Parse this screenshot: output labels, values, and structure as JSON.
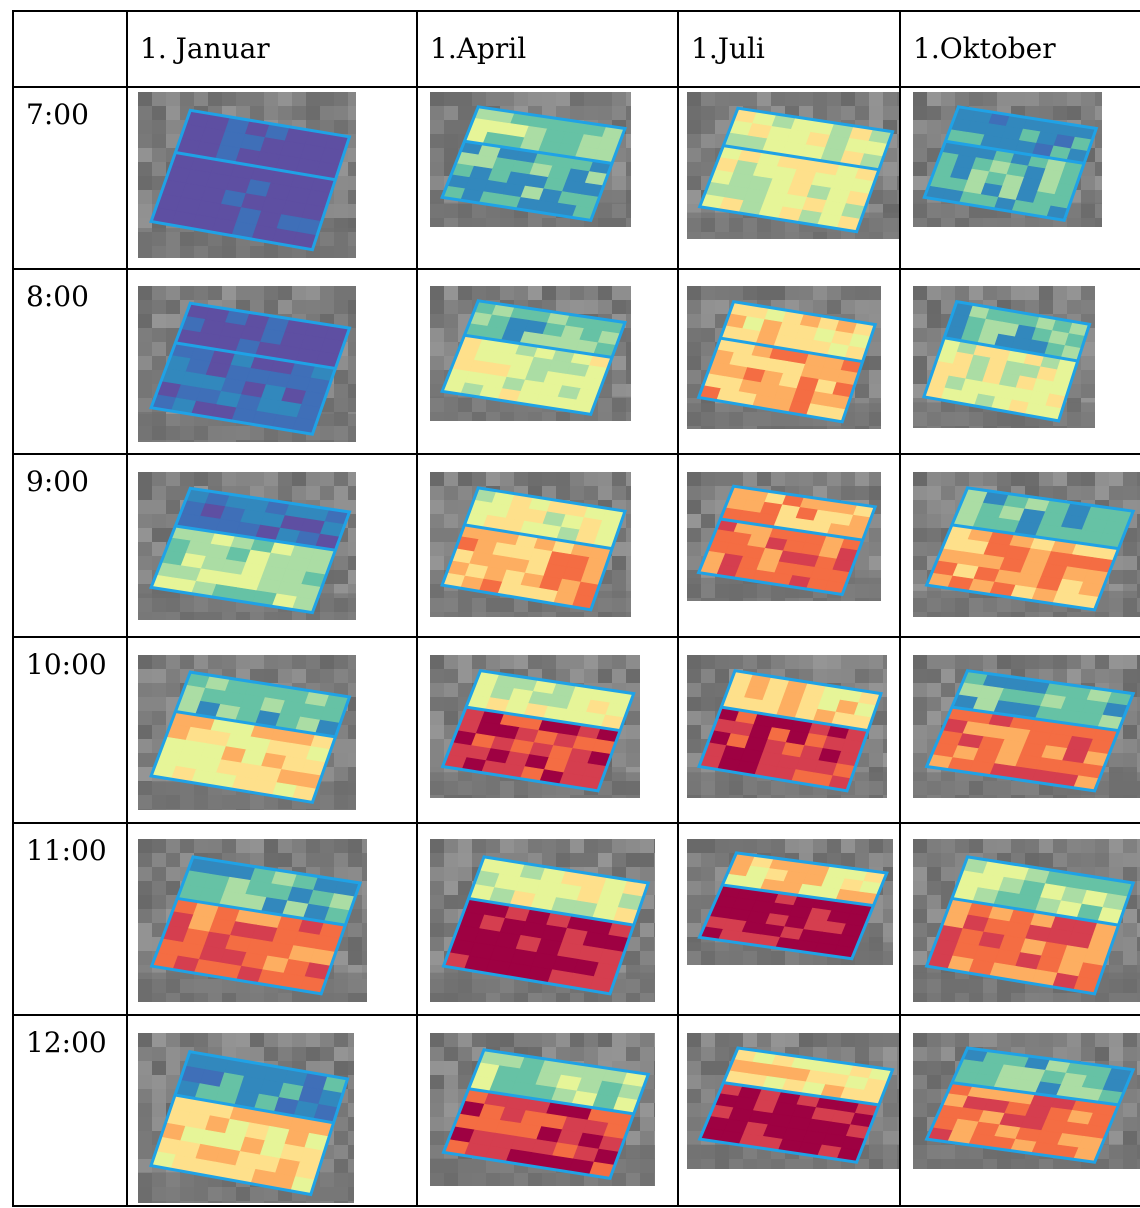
{
  "table": {
    "headers": [
      "",
      "1. Januar",
      "1.April",
      "1.Juli",
      "1.Oktober"
    ],
    "rows": [
      "7:00",
      "8:00",
      "9:00",
      "10:00",
      "11:00",
      "12:00"
    ]
  },
  "palette": {
    "shadow_gray": "#6f6f6f",
    "panel_outline": "#1fa2e6",
    "level_colors": [
      "#5e4fa2",
      "#3f6fb8",
      "#3288bd",
      "#66c2a5",
      "#abdda4",
      "#e6f598",
      "#fee08b",
      "#fdae61",
      "#f46d43",
      "#d53e4f",
      "#9e0142"
    ]
  },
  "thumbnails": [
    [
      {
        "top": 0,
        "bottom": 0
      },
      {
        "top": 4,
        "bottom": 3
      },
      {
        "top": 5,
        "bottom": 5
      },
      {
        "top": 2,
        "bottom": 3
      }
    ],
    [
      {
        "top": 0,
        "bottom": 1
      },
      {
        "top": 3,
        "bottom": 5
      },
      {
        "top": 6,
        "bottom": 7
      },
      {
        "top": 3,
        "bottom": 5
      }
    ],
    [
      {
        "top": 1,
        "bottom": 4
      },
      {
        "top": 5,
        "bottom": 7
      },
      {
        "top": 7,
        "bottom": 8
      },
      {
        "top": 3,
        "bottom": 7
      }
    ],
    [
      {
        "top": 3,
        "bottom": 6
      },
      {
        "top": 5,
        "bottom": 9
      },
      {
        "top": 6,
        "bottom": 9
      },
      {
        "top": 3,
        "bottom": 8
      }
    ],
    [
      {
        "top": 3,
        "bottom": 8
      },
      {
        "top": 5,
        "bottom": 10
      },
      {
        "top": 6,
        "bottom": 10
      },
      {
        "top": 4,
        "bottom": 8
      }
    ],
    [
      {
        "top": 2,
        "bottom": 6
      },
      {
        "top": 4,
        "bottom": 9
      },
      {
        "top": 6,
        "bottom": 10
      },
      {
        "top": 3,
        "bottom": 8
      }
    ]
  ]
}
